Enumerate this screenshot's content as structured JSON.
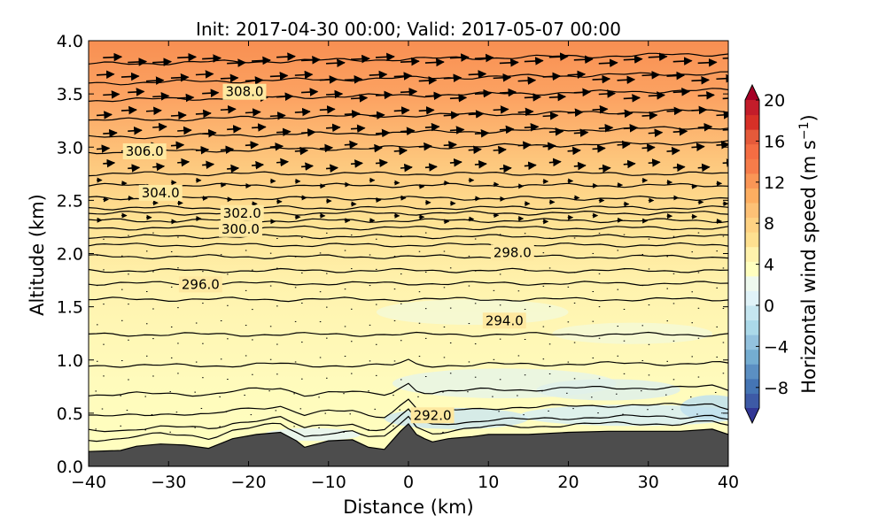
{
  "chart_data": {
    "type": "contour",
    "title": "Init: 2017-04-30 00:00; Valid: 2017-05-07 00:00",
    "xlabel": "Distance (km)",
    "ylabel": "Altitude (km)",
    "xlim": [
      -40,
      40
    ],
    "ylim": [
      0.0,
      4.0
    ],
    "x_ticks": [
      -40,
      -30,
      -20,
      -10,
      0,
      10,
      20,
      30,
      40
    ],
    "x_tick_labels": [
      "−40",
      "−30",
      "−20",
      "−10",
      "0",
      "10",
      "20",
      "30",
      "40"
    ],
    "y_ticks": [
      0.0,
      0.5,
      1.0,
      1.5,
      2.0,
      2.5,
      3.0,
      3.5,
      4.0
    ],
    "y_tick_labels": [
      "0.0",
      "0.5",
      "1.0",
      "1.5",
      "2.0",
      "2.5",
      "3.0",
      "3.5",
      "4.0"
    ],
    "colorbar": {
      "label": "Horizontal wind speed (m s",
      "label_sup": "−1",
      "label_close": ")",
      "range": [
        -10,
        20
      ],
      "ticks": [
        -8,
        -4,
        0,
        4,
        8,
        12,
        16,
        20
      ],
      "tick_labels": [
        "−8",
        "−4",
        "0",
        "4",
        "8",
        "12",
        "16",
        "20"
      ],
      "extend": "both",
      "colors": [
        "#313695",
        "#3d5aa6",
        "#4575b4",
        "#5b8fc2",
        "#74add1",
        "#93c2de",
        "#abd9e9",
        "#c5e6f0",
        "#e0f3f8",
        "#eef9ee",
        "#ffffbf",
        "#fff2ac",
        "#fee090",
        "#fed283",
        "#fdc176",
        "#fdae61",
        "#fa9656",
        "#f67c4a",
        "#f46d43",
        "#e55a3a",
        "#d73027",
        "#c31d2a",
        "#a50026"
      ]
    },
    "contour_labels": [
      {
        "text": "308.0",
        "x": -20.5,
        "y": 3.52
      },
      {
        "text": "306.0",
        "x": -33.0,
        "y": 2.96
      },
      {
        "text": "304.0",
        "x": -31.0,
        "y": 2.57
      },
      {
        "text": "302.0",
        "x": -20.8,
        "y": 2.38
      },
      {
        "text": "300.0",
        "x": -21.0,
        "y": 2.23
      },
      {
        "text": "298.0",
        "x": 13.0,
        "y": 2.01
      },
      {
        "text": "296.0",
        "x": -26.0,
        "y": 1.71
      },
      {
        "text": "294.0",
        "x": 12.0,
        "y": 1.37
      },
      {
        "text": "292.0",
        "x": 3.0,
        "y": 0.48
      }
    ],
    "contour_levels": [
      3.78,
      3.6,
      3.44,
      3.25,
      3.09,
      2.95,
      2.75,
      2.64,
      2.52,
      2.43,
      2.38,
      2.31,
      2.24,
      2.16,
      2.08,
      1.97,
      1.84,
      1.72,
      1.57,
      1.24,
      0.95,
      0.7,
      0.52,
      0.4,
      0.33
    ],
    "terrain": {
      "x": [
        -40,
        -36,
        -34,
        -31,
        -28,
        -25,
        -22,
        -19,
        -16,
        -14,
        -13,
        -10,
        -7,
        -5,
        -3,
        -1,
        0,
        1,
        2,
        3,
        5,
        8,
        10,
        12,
        15,
        20,
        25,
        30,
        34,
        38,
        40
      ],
      "y": [
        0.14,
        0.15,
        0.19,
        0.21,
        0.2,
        0.17,
        0.26,
        0.3,
        0.32,
        0.24,
        0.18,
        0.24,
        0.25,
        0.18,
        0.16,
        0.33,
        0.4,
        0.3,
        0.26,
        0.23,
        0.26,
        0.28,
        0.3,
        0.3,
        0.3,
        0.32,
        0.33,
        0.33,
        0.33,
        0.35,
        0.3
      ]
    }
  }
}
